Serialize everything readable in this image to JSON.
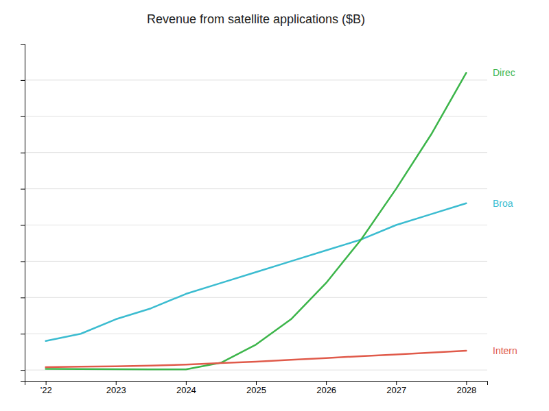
{
  "chart_data": {
    "type": "line",
    "title": "Revenue from satellite applications ($B)",
    "x": [
      2022,
      2022.5,
      2023,
      2023.5,
      2024,
      2024.5,
      2025,
      2025.5,
      2026,
      2026.5,
      2027,
      2027.5,
      2028
    ],
    "series": [
      {
        "name": "Broa",
        "color": "#3bbcd0",
        "values": [
          8,
          10,
          14,
          17,
          21,
          24,
          27,
          30,
          33,
          36,
          40,
          43,
          46
        ]
      },
      {
        "name": "Direc",
        "color": "#3cb54a",
        "values": [
          0.3,
          0.25,
          0.2,
          0.15,
          0.15,
          2.0,
          7.0,
          14.0,
          24.0,
          36.0,
          50.0,
          65.0,
          82.0
        ]
      },
      {
        "name": "Intern",
        "color": "#e05a4a",
        "values": [
          0.8,
          0.9,
          1.0,
          1.2,
          1.5,
          1.9,
          2.3,
          2.8,
          3.3,
          3.8,
          4.3,
          4.8,
          5.3
        ]
      }
    ],
    "xlim": [
      2021.7,
      2028.3
    ],
    "xticks": [
      {
        "value": 2022,
        "label": "'22"
      },
      2023,
      2024,
      2025,
      2026,
      2027,
      2028
    ],
    "ylim": [
      -3,
      90
    ],
    "yticks": [
      0,
      10,
      20,
      30,
      40,
      50,
      60,
      70,
      80
    ],
    "grid": true,
    "tick_labels": "x"
  }
}
